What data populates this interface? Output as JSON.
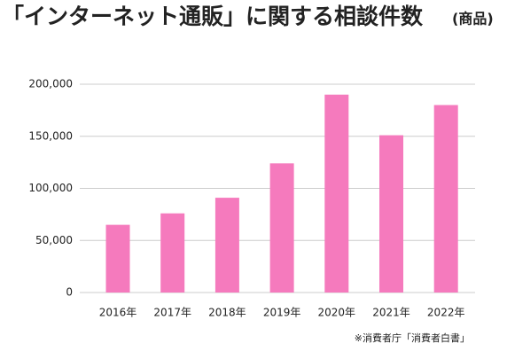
{
  "chart_data": {
    "type": "bar",
    "title": "「インターネット通販」に関する相談件数",
    "subtitle": "(商品)",
    "source": "※消費者庁「消費者白書」",
    "categories": [
      "2016年",
      "2017年",
      "2018年",
      "2019年",
      "2020年",
      "2021年",
      "2022年"
    ],
    "values": [
      65000,
      76000,
      91000,
      124000,
      190000,
      151000,
      180000
    ],
    "color": "#f57abd",
    "ylim": [
      0,
      200000
    ],
    "yticks": [
      0,
      {
        "value": 50000,
        "label": "50,000"
      },
      {
        "value": 100000,
        "label": "100,000"
      },
      {
        "value": 150000,
        "label": "150,000"
      },
      {
        "value": 200000,
        "label": "200,000"
      }
    ],
    "grid": true
  }
}
